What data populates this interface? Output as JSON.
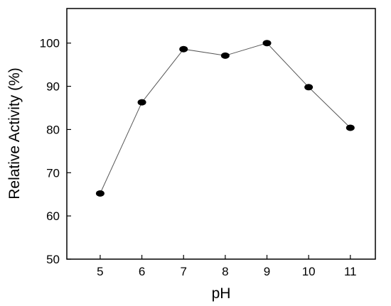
{
  "chart_data": {
    "type": "line",
    "xlabel": "pH",
    "ylabel": "Relative Activity (%)",
    "xlim": [
      4.2,
      11.6
    ],
    "ylim": [
      50,
      108
    ],
    "x_ticks": [
      5,
      6,
      7,
      8,
      9,
      10,
      11
    ],
    "y_ticks": [
      50,
      60,
      70,
      80,
      90,
      100
    ],
    "grid": false,
    "series": [
      {
        "x": [
          5,
          6,
          7,
          8,
          9,
          10,
          11
        ],
        "y": [
          65.2,
          86.3,
          98.6,
          97.1,
          100,
          89.8,
          80.4
        ]
      }
    ],
    "colors": {
      "line": "#555555",
      "marker": "#000000",
      "axis": "#000000"
    }
  }
}
